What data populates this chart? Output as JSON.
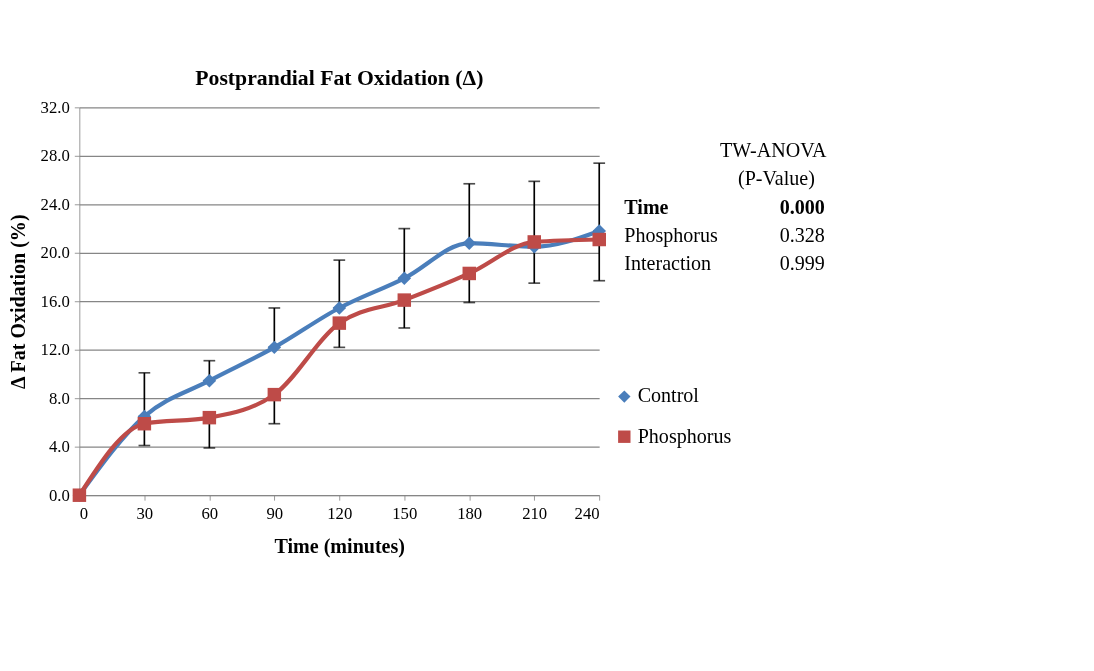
{
  "chart_data": {
    "type": "line",
    "title": "Postprandial Fat Oxidation (Δ)",
    "xlabel": "Time (minutes)",
    "ylabel": "Δ Fat Oxidation (%)",
    "x": [
      0,
      30,
      60,
      90,
      120,
      150,
      180,
      210,
      240
    ],
    "series": [
      {
        "name": "Control",
        "color": "#4a7ebb",
        "marker": "diamond",
        "values": [
          0,
          6.5,
          9.45,
          12.2,
          15.45,
          17.9,
          20.8,
          20.5,
          21.8
        ],
        "errors": [
          null,
          [
            6.5,
            10.1
          ],
          [
            9.45,
            11.1
          ],
          [
            12.2,
            15.45
          ],
          [
            15.45,
            19.4
          ],
          [
            17.9,
            22.0
          ],
          [
            20.8,
            25.7
          ],
          [
            20.5,
            25.9
          ],
          [
            21.8,
            27.4
          ]
        ]
      },
      {
        "name": "Phosphorus",
        "color": "#be4b48",
        "marker": "square",
        "values": [
          0,
          5.9,
          6.4,
          8.3,
          14.2,
          16.1,
          18.3,
          20.9,
          21.1
        ],
        "errors": [
          null,
          [
            4.1,
            5.9
          ],
          [
            3.9,
            6.4
          ],
          [
            5.9,
            8.3
          ],
          [
            12.2,
            14.2
          ],
          [
            13.8,
            16.1
          ],
          [
            15.9,
            18.3
          ],
          [
            17.5,
            20.9
          ],
          [
            17.7,
            21.1
          ]
        ]
      }
    ],
    "xlim": [
      0,
      240
    ],
    "xticks": [
      0,
      30,
      60,
      90,
      120,
      150,
      180,
      210,
      240
    ],
    "ylim": [
      0,
      32
    ],
    "yticks": [
      {
        "value": 0,
        "label": "0.0"
      },
      {
        "value": 4,
        "label": "4.0"
      },
      {
        "value": 8,
        "label": "8.0"
      },
      {
        "value": 12,
        "label": "12.0"
      },
      {
        "value": 16,
        "label": "16.0"
      },
      {
        "value": 20,
        "label": "20.0"
      },
      {
        "value": 24,
        "label": "24.0"
      },
      {
        "value": 28,
        "label": "28.0"
      },
      {
        "value": 32,
        "label": "32.0"
      }
    ],
    "grid": "y",
    "legend": "right",
    "line_style": "solid",
    "annotations": [
      "TW-ANOVA",
      "(P-Value)",
      "Time",
      "0.000",
      "Phosphorus",
      "0.328",
      "Interaction",
      "0.999"
    ]
  }
}
